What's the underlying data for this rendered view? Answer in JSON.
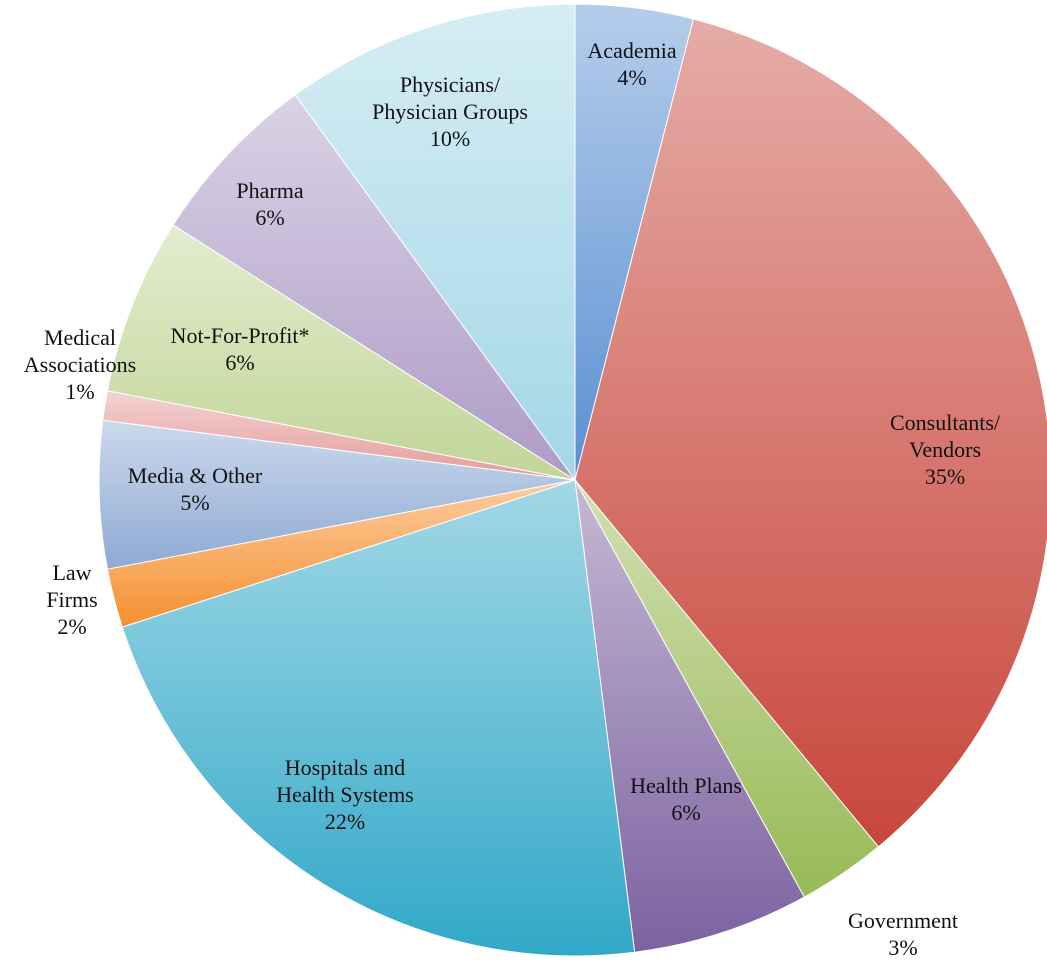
{
  "chart_data": {
    "type": "pie",
    "categories": [
      "Academia",
      "Consultants/\nVendors",
      "Government",
      "Health Plans",
      "Hospitals and\nHealth Systems",
      "Law\nFirms",
      "Media & Other",
      "Medical\nAssociations",
      "Not-For-Profit*",
      "Pharma",
      "Physicians/\nPhysician Groups"
    ],
    "values": [
      4,
      35,
      3,
      6,
      22,
      2,
      5,
      1,
      6,
      6,
      10
    ],
    "value_labels": [
      "4%",
      "35%",
      "3%",
      "6%",
      "22%",
      "2%",
      "5%",
      "1%",
      "6%",
      "6%",
      "10%"
    ],
    "colors": [
      "#5b8fd2",
      "#c8463c",
      "#98ba56",
      "#7d62a0",
      "#31a8c8",
      "#f5902f",
      "#8eaad4",
      "#e49a9a",
      "#c1d597",
      "#ad9bc6",
      "#a3d7e6"
    ]
  }
}
